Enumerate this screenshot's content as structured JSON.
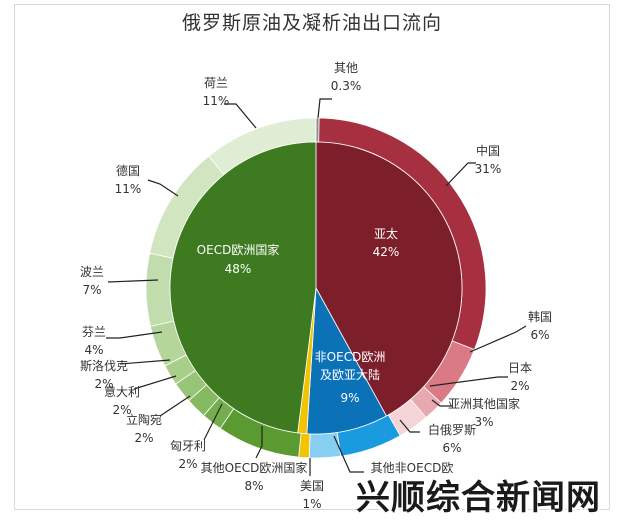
{
  "watermark": "兴顺综合新闻网",
  "chart_data": {
    "type": "pie",
    "title": "俄罗斯原油及凝析油出口流向",
    "inner": [
      {
        "label": "亚太",
        "value": "42%",
        "pct": 42,
        "color": "#7d1e2b"
      },
      {
        "label": "非OECD欧洲及欧亚大陆",
        "value": "9%",
        "pct": 9,
        "color": "#0b72b8"
      },
      {
        "label": "美国",
        "value": "1%",
        "pct": 1,
        "color": "#f2c300"
      },
      {
        "label": "OECD欧洲国家",
        "value": "48%",
        "pct": 48,
        "color": "#3e7a1f"
      }
    ],
    "outer": [
      {
        "label": "其他",
        "value": "0.3%",
        "pct": 0.3,
        "color": "#8c8c8c"
      },
      {
        "label": "中国",
        "value": "31%",
        "pct": 31,
        "color": "#a6303f"
      },
      {
        "label": "韩国",
        "value": "6%",
        "pct": 6,
        "color": "#da7a84"
      },
      {
        "label": "日本",
        "value": "2%",
        "pct": 2,
        "color": "#e7a9af"
      },
      {
        "label": "亚洲其他国家",
        "value": "3%",
        "pct": 3,
        "color": "#f4d4d7"
      },
      {
        "label": "白俄罗斯",
        "value": "6%",
        "pct": 6,
        "color": "#1a9be0"
      },
      {
        "label": "其他非OECD欧",
        "value": "",
        "pct": 3,
        "color": "#86cff2"
      },
      {
        "label": "美国",
        "value": "1%",
        "pct": 1,
        "color": "#f2c300"
      },
      {
        "label": "其他OECD欧洲国家",
        "value": "8%",
        "pct": 8,
        "color": "#5a9a30"
      },
      {
        "label": "匈牙利",
        "value": "2%",
        "pct": 2,
        "color": "#74ad4e"
      },
      {
        "label": "立陶宛",
        "value": "2%",
        "pct": 2,
        "color": "#86ba62"
      },
      {
        "label": "意大利",
        "value": "2%",
        "pct": 2,
        "color": "#97c476"
      },
      {
        "label": "斯洛伐克",
        "value": "2%",
        "pct": 2,
        "color": "#a8ce8a"
      },
      {
        "label": "芬兰",
        "value": "4%",
        "pct": 4,
        "color": "#b4d69a"
      },
      {
        "label": "波兰",
        "value": "7%",
        "pct": 7,
        "color": "#c2ddad"
      },
      {
        "label": "德国",
        "value": "11%",
        "pct": 11,
        "color": "#d0e5c0"
      },
      {
        "label": "荷兰",
        "value": "11%",
        "pct": 11,
        "color": "#dfedd4"
      }
    ]
  }
}
